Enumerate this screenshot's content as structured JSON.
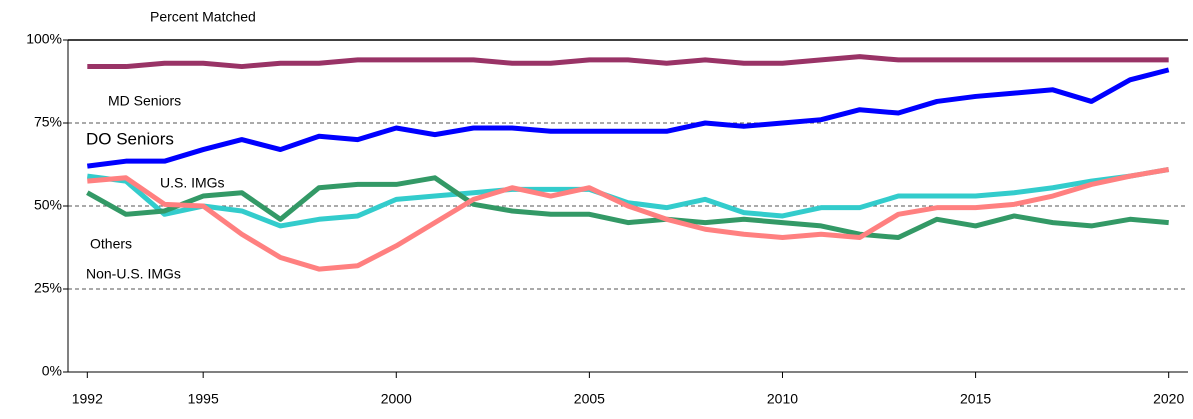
{
  "chart_data": {
    "type": "line",
    "title": "Percent Matched",
    "x": [
      1992,
      1993,
      1994,
      1995,
      1996,
      1997,
      1998,
      1999,
      2000,
      2001,
      2002,
      2003,
      2004,
      2005,
      2006,
      2007,
      2008,
      2009,
      2010,
      2011,
      2012,
      2013,
      2014,
      2015,
      2016,
      2017,
      2018,
      2019,
      2020
    ],
    "xlim": [
      1991.5,
      2020.5
    ],
    "xticks": [
      1992,
      1995,
      2000,
      2005,
      2010,
      2015,
      2020
    ],
    "ylim": [
      0,
      100
    ],
    "yticks": [
      {
        "value": 0,
        "label": "0%"
      },
      {
        "value": 25,
        "label": "25%"
      },
      {
        "value": 50,
        "label": "50%"
      },
      {
        "value": 75,
        "label": "75%"
      },
      {
        "value": 100,
        "label": "100%"
      }
    ],
    "grid": true,
    "series": [
      {
        "name": "MD Seniors",
        "color": "#993366",
        "values": [
          92,
          92,
          93,
          93,
          92,
          93,
          93,
          94,
          94,
          94,
          94,
          93,
          93,
          94,
          94,
          93,
          94,
          93,
          93,
          94,
          95,
          94,
          94,
          94,
          94,
          94,
          94,
          94,
          94
        ]
      },
      {
        "name": "DO Seniors",
        "color": "#0000ff",
        "values": [
          62,
          63.5,
          63.5,
          67,
          70,
          67,
          71,
          70,
          73.5,
          71.5,
          73.5,
          73.5,
          72.5,
          72.5,
          72.5,
          72.5,
          75,
          74,
          75,
          76,
          79,
          78,
          81.5,
          83,
          84,
          85,
          81.5,
          88,
          91
        ]
      },
      {
        "name": "U.S. IMGs",
        "color": "#33cccc",
        "values": [
          59,
          57.5,
          47.5,
          50,
          48.5,
          44,
          46,
          47,
          52,
          53,
          54,
          55,
          55,
          55,
          51,
          49.5,
          52,
          48,
          47,
          49.5,
          49.5,
          53,
          53,
          53,
          54,
          55.5,
          57.5,
          59,
          61
        ]
      },
      {
        "name": "Others",
        "color": "#339966",
        "values": [
          54,
          47.5,
          48.5,
          53,
          54,
          46,
          55.5,
          56.5,
          56.5,
          58.5,
          50.5,
          48.5,
          47.5,
          47.5,
          45,
          46,
          45,
          46,
          45,
          44,
          41.5,
          40.5,
          46,
          44,
          47,
          45,
          44,
          46,
          45
        ]
      },
      {
        "name": "Non-U.S. IMGs",
        "color": "#ff8080",
        "values": [
          57.5,
          58.5,
          50.5,
          50,
          41.5,
          34.5,
          31,
          32,
          38,
          45,
          52,
          55.5,
          53,
          55.5,
          50,
          46,
          43,
          41.5,
          40.5,
          41.5,
          40.5,
          47.5,
          49.5,
          49.5,
          50.5,
          53,
          56.5,
          59,
          61
        ]
      }
    ]
  }
}
